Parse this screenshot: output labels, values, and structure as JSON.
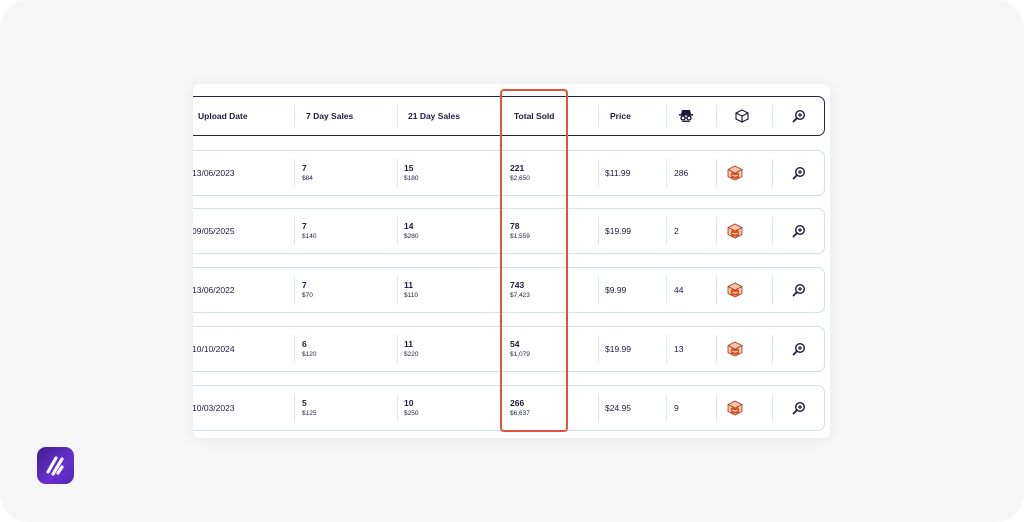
{
  "header": {
    "upload_date": "Upload Date",
    "sales_7": "7 Day Sales",
    "sales_21": "21 Day Sales",
    "total_sold": "Total Sold",
    "price": "Price",
    "icons": [
      "spy-icon",
      "box-icon",
      "search-plus-icon"
    ]
  },
  "rows": [
    {
      "date": "13/06/2023",
      "s7": "7",
      "s7_rev": "$84",
      "s21": "15",
      "s21_rev": "$180",
      "total": "221",
      "total_rev": "$2,650",
      "price": "$11.99",
      "count": "286"
    },
    {
      "date": "09/05/2025",
      "s7": "7",
      "s7_rev": "$140",
      "s21": "14",
      "s21_rev": "$280",
      "total": "78",
      "total_rev": "$1,559",
      "price": "$19.99",
      "count": "2"
    },
    {
      "date": "13/06/2022",
      "s7": "7",
      "s7_rev": "$70",
      "s21": "11",
      "s21_rev": "$110",
      "total": "743",
      "total_rev": "$7,423",
      "price": "$9.99",
      "count": "44"
    },
    {
      "date": "10/10/2024",
      "s7": "6",
      "s7_rev": "$120",
      "s21": "11",
      "s21_rev": "$220",
      "total": "54",
      "total_rev": "$1,079",
      "price": "$19.99",
      "count": "13"
    },
    {
      "date": "10/03/2023",
      "s7": "5",
      "s7_rev": "$125",
      "s21": "10",
      "s21_rev": "$250",
      "total": "266",
      "total_rev": "$6,637",
      "price": "$24.95",
      "count": "9"
    }
  ],
  "colors": {
    "accent": "#e3533a",
    "navy": "#1d1c3b",
    "row_border": "#cfe0f5",
    "logo": "#5b2bc0"
  }
}
